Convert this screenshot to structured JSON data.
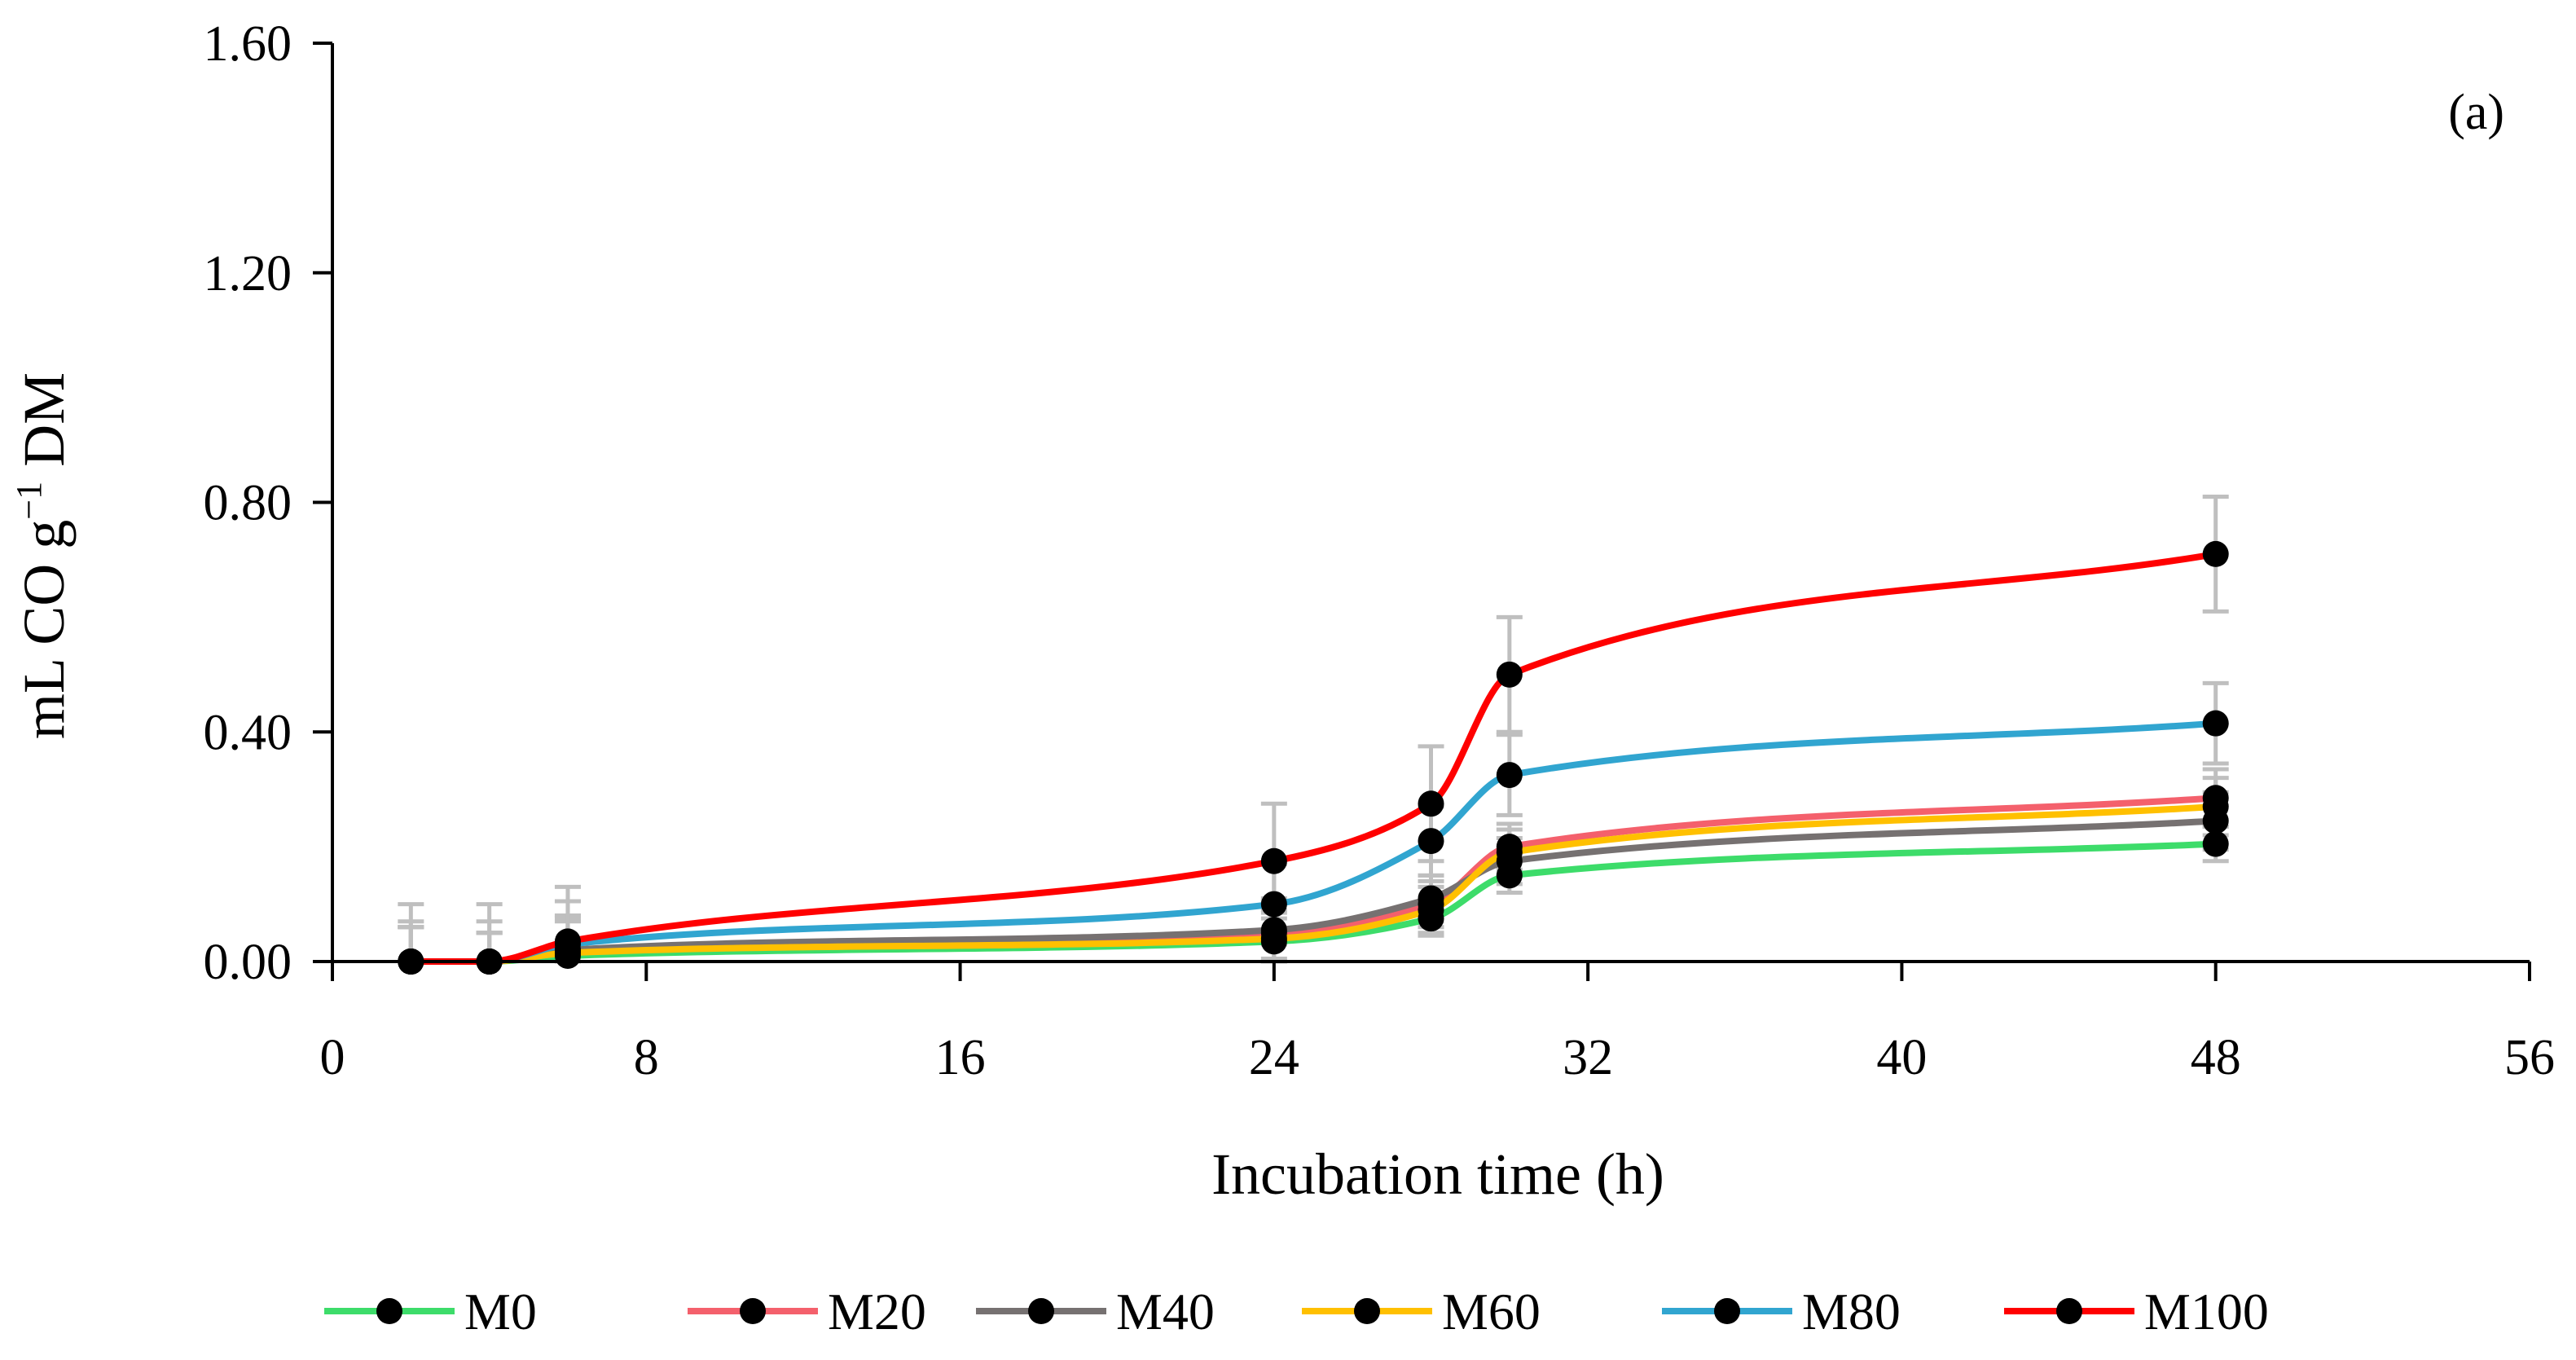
{
  "chart_data": {
    "type": "line",
    "panel_label": "(a)",
    "xlabel": "Incubation time (h)",
    "ylabel": {
      "base": "mL CO g",
      "superscript": "−1",
      "suffix": " DM"
    },
    "xlim": [
      0,
      56
    ],
    "ylim": [
      0,
      1.6
    ],
    "xticks": [
      0,
      8,
      16,
      24,
      32,
      40,
      48,
      56
    ],
    "yticks": [
      0,
      0.4,
      0.8,
      1.2,
      1.6
    ],
    "ytick_labels": [
      "0.00",
      "0.40",
      "0.80",
      "1.20",
      "1.60"
    ],
    "xtick_labels": [
      "0",
      "8",
      "16",
      "24",
      "32",
      "40",
      "48",
      "56"
    ],
    "grid": false,
    "legend_position": "bottom",
    "x": [
      2,
      4,
      6,
      24,
      28,
      30,
      48
    ],
    "series": [
      {
        "name": "M0",
        "color": "#3ddc6a",
        "values": [
          0.0,
          0.0,
          0.01,
          0.035,
          0.075,
          0.15,
          0.205
        ],
        "errors": [
          0.06,
          0.05,
          0.06,
          0.05,
          0.03,
          0.03,
          0.03
        ]
      },
      {
        "name": "M20",
        "color": "#f4606c",
        "values": [
          0.0,
          0.0,
          0.02,
          0.05,
          0.1,
          0.2,
          0.285
        ],
        "errors": [
          0.06,
          0.05,
          0.06,
          0.06,
          0.04,
          0.04,
          0.05
        ]
      },
      {
        "name": "M40",
        "color": "#767171",
        "values": [
          0.0,
          0.0,
          0.02,
          0.055,
          0.11,
          0.175,
          0.245
        ],
        "errors": [
          0.06,
          0.05,
          0.06,
          0.05,
          0.04,
          0.04,
          0.05
        ]
      },
      {
        "name": "M60",
        "color": "#ffc000",
        "values": [
          0.0,
          0.0,
          0.015,
          0.04,
          0.09,
          0.19,
          0.27
        ],
        "errors": [
          0.06,
          0.05,
          0.06,
          0.05,
          0.04,
          0.04,
          0.05
        ]
      },
      {
        "name": "M80",
        "color": "#31a5d0",
        "values": [
          0.0,
          0.0,
          0.03,
          0.1,
          0.21,
          0.325,
          0.415
        ],
        "errors": [
          0.1,
          0.1,
          0.1,
          0.07,
          0.06,
          0.07,
          0.07
        ]
      },
      {
        "name": "M100",
        "color": "#ff0000",
        "values": [
          0.0,
          0.0,
          0.035,
          0.175,
          0.275,
          0.5,
          0.71
        ],
        "errors": [
          0.07,
          0.07,
          0.07,
          0.1,
          0.1,
          0.1,
          0.1
        ]
      }
    ]
  }
}
